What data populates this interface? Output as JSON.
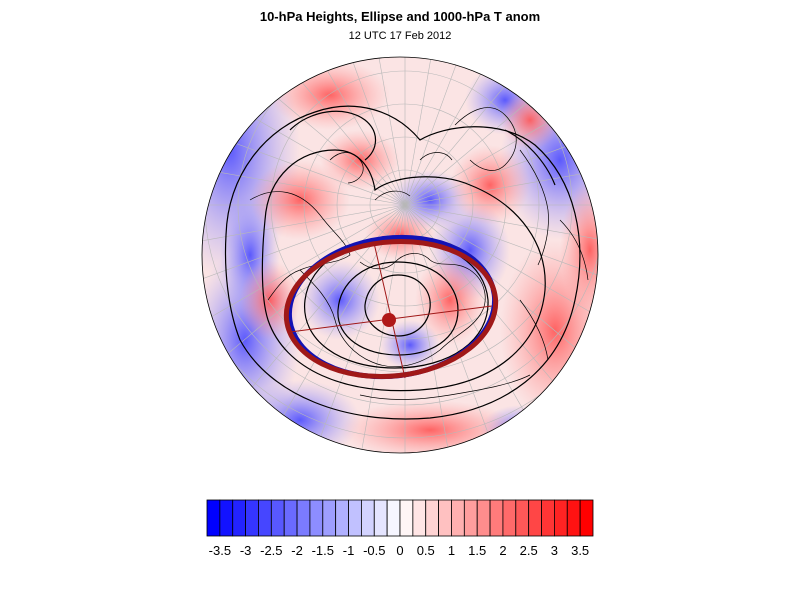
{
  "figure": {
    "title": "10-hPa Heights, Ellipse and 1000-hPa T anom",
    "subtitle": "12 UTC 17 Feb 2012"
  },
  "colorbar": {
    "levels": [
      "-3.5",
      "-3",
      "-2.5",
      "-2",
      "-1.5",
      "-1",
      "-0.5",
      "0",
      "0.5",
      "1",
      "1.5",
      "2",
      "2.5",
      "3",
      "3.5"
    ],
    "min": -3.75,
    "max": 3.75,
    "step": 0.25,
    "low_color": "#0000ff",
    "mid_color": "#ffffff",
    "high_color": "#ff0000"
  },
  "map_features": {
    "projection": "polar-stereographic",
    "ellipse_colors": [
      "#1010b0",
      "#a01818"
    ],
    "centroid_color": "#b01818",
    "contour_color": "#000000"
  }
}
